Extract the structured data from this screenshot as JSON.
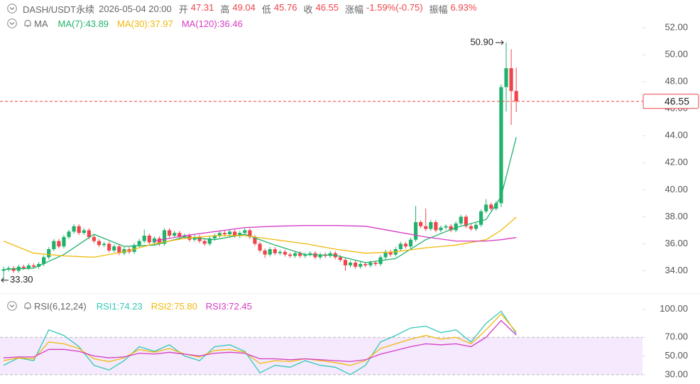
{
  "header": {
    "symbol": "DASH/USDT永续",
    "datetime": "2026-05-04 20:00",
    "stats": [
      {
        "label": "开",
        "value": "47.31"
      },
      {
        "label": "高",
        "value": "49.04"
      },
      {
        "label": "低",
        "value": "45.76"
      },
      {
        "label": "收",
        "value": "46.55"
      },
      {
        "label": "涨幅",
        "value": "-1.59%(-0.75)"
      },
      {
        "label": "振幅",
        "value": "6.93%"
      }
    ]
  },
  "chart_data": [
    {
      "type": "candlestick",
      "indicator": "MA",
      "up_color": "#20b26c",
      "down_color": "#ef454a",
      "ylim": [
        32.5,
        53
      ],
      "yticks": [
        {
          "value": 34,
          "label": "34.00"
        },
        {
          "value": 36,
          "label": "36.00"
        },
        {
          "value": 38,
          "label": "38.00"
        },
        {
          "value": 40,
          "label": "40.00"
        },
        {
          "value": 42,
          "label": "42.00"
        },
        {
          "value": 44,
          "label": "44.00"
        },
        {
          "value": 46,
          "label": "46.00"
        },
        {
          "value": 48,
          "label": "48.00"
        },
        {
          "value": 50,
          "label": "50.00"
        },
        {
          "value": 52,
          "label": "52.00"
        }
      ],
      "high_marker": {
        "value": 50.9,
        "label": "50.90"
      },
      "low_marker": {
        "value": 33.3,
        "label": "33.30"
      },
      "last_price": {
        "value": 46.55,
        "label": "46.55"
      },
      "ohlc": [
        [
          34.0,
          34.3,
          33.3,
          34.1
        ],
        [
          34.1,
          34.35,
          33.95,
          34.2
        ],
        [
          34.2,
          34.35,
          33.85,
          34.0
        ],
        [
          34.0,
          34.45,
          33.85,
          34.3
        ],
        [
          34.3,
          34.45,
          34.05,
          34.2
        ],
        [
          34.2,
          34.55,
          34.05,
          34.4
        ],
        [
          34.4,
          34.55,
          34.15,
          34.3
        ],
        [
          34.3,
          34.65,
          34.15,
          34.5
        ],
        [
          34.5,
          35.15,
          34.35,
          35.0
        ],
        [
          35.0,
          35.75,
          34.85,
          35.6
        ],
        [
          35.6,
          36.35,
          35.45,
          36.2
        ],
        [
          36.2,
          36.35,
          35.65,
          35.8
        ],
        [
          35.8,
          36.65,
          35.65,
          36.5
        ],
        [
          36.5,
          37.05,
          36.35,
          36.9
        ],
        [
          36.9,
          37.45,
          36.75,
          37.3
        ],
        [
          37.3,
          37.45,
          36.65,
          36.8
        ],
        [
          36.8,
          37.15,
          36.65,
          37.0
        ],
        [
          37.0,
          37.15,
          36.35,
          36.5
        ],
        [
          36.5,
          36.65,
          36.05,
          36.2
        ],
        [
          36.2,
          36.35,
          35.75,
          35.9
        ],
        [
          35.9,
          36.15,
          35.75,
          36.0
        ],
        [
          36.0,
          36.15,
          35.35,
          35.5
        ],
        [
          35.5,
          35.95,
          35.35,
          35.8
        ],
        [
          35.8,
          35.95,
          35.15,
          35.3
        ],
        [
          35.3,
          35.75,
          35.15,
          35.6
        ],
        [
          35.6,
          35.75,
          35.25,
          35.4
        ],
        [
          35.4,
          36.05,
          35.25,
          35.9
        ],
        [
          35.9,
          36.35,
          35.75,
          36.2
        ],
        [
          36.2,
          37.05,
          36.05,
          36.6
        ],
        [
          36.6,
          36.75,
          35.95,
          36.1
        ],
        [
          36.1,
          36.55,
          35.95,
          36.4
        ],
        [
          36.4,
          36.55,
          35.85,
          36.0
        ],
        [
          36.0,
          37.15,
          35.85,
          37.0
        ],
        [
          37.0,
          37.15,
          36.45,
          36.6
        ],
        [
          36.6,
          36.95,
          36.45,
          36.8
        ],
        [
          36.8,
          36.95,
          36.35,
          36.5
        ],
        [
          36.5,
          36.75,
          36.35,
          36.6
        ],
        [
          36.6,
          36.75,
          36.15,
          36.3
        ],
        [
          36.3,
          36.65,
          36.15,
          36.5
        ],
        [
          36.5,
          36.65,
          36.05,
          36.2
        ],
        [
          36.2,
          36.35,
          35.85,
          36.0
        ],
        [
          36.0,
          36.55,
          35.85,
          36.4
        ],
        [
          36.4,
          36.75,
          36.25,
          36.6
        ],
        [
          36.6,
          36.95,
          36.45,
          36.8
        ],
        [
          36.8,
          36.95,
          36.55,
          36.7
        ],
        [
          36.7,
          37.05,
          36.55,
          36.9
        ],
        [
          36.9,
          37.05,
          36.45,
          36.6
        ],
        [
          36.6,
          36.95,
          36.45,
          36.8
        ],
        [
          36.8,
          37.15,
          36.65,
          37.0
        ],
        [
          37.0,
          37.15,
          36.35,
          36.5
        ],
        [
          36.5,
          36.65,
          35.85,
          36.0
        ],
        [
          36.0,
          36.15,
          35.35,
          35.5
        ],
        [
          35.5,
          35.65,
          34.95,
          35.2
        ],
        [
          35.2,
          35.75,
          35.05,
          35.6
        ],
        [
          35.6,
          35.75,
          35.15,
          35.3
        ],
        [
          35.3,
          35.55,
          35.15,
          35.4
        ],
        [
          35.4,
          35.55,
          35.05,
          35.2
        ],
        [
          35.2,
          35.35,
          34.95,
          35.1
        ],
        [
          35.1,
          35.45,
          34.95,
          35.3
        ],
        [
          35.3,
          35.45,
          34.95,
          35.1
        ],
        [
          35.1,
          35.35,
          34.95,
          35.2
        ],
        [
          35.2,
          35.45,
          35.05,
          35.3
        ],
        [
          35.3,
          35.45,
          34.85,
          35.0
        ],
        [
          35.0,
          35.35,
          34.85,
          35.2
        ],
        [
          35.2,
          35.35,
          34.95,
          35.1
        ],
        [
          35.1,
          35.45,
          34.95,
          35.3
        ],
        [
          35.3,
          35.45,
          34.85,
          35.0
        ],
        [
          35.0,
          35.15,
          34.65,
          34.8
        ],
        [
          34.8,
          34.95,
          34.0,
          34.4
        ],
        [
          34.4,
          34.75,
          34.25,
          34.6
        ],
        [
          34.6,
          34.75,
          34.15,
          34.3
        ],
        [
          34.3,
          34.65,
          34.15,
          34.5
        ],
        [
          34.5,
          34.65,
          34.25,
          34.4
        ],
        [
          34.4,
          34.75,
          34.25,
          34.6
        ],
        [
          34.6,
          34.75,
          34.35,
          34.5
        ],
        [
          34.5,
          35.15,
          34.35,
          35.0
        ],
        [
          35.0,
          35.55,
          34.85,
          35.4
        ],
        [
          35.4,
          35.55,
          35.05,
          35.2
        ],
        [
          35.2,
          35.75,
          35.05,
          35.6
        ],
        [
          35.6,
          36.15,
          35.45,
          36.0
        ],
        [
          36.0,
          36.15,
          35.65,
          35.8
        ],
        [
          35.8,
          36.45,
          35.65,
          36.3
        ],
        [
          36.3,
          38.8,
          36.15,
          37.6
        ],
        [
          37.6,
          37.75,
          37.15,
          37.3
        ],
        [
          37.3,
          38.6,
          36.95,
          37.1
        ],
        [
          37.1,
          37.75,
          36.95,
          37.6
        ],
        [
          37.6,
          37.75,
          36.85,
          37.0
        ],
        [
          37.0,
          37.35,
          36.85,
          37.2
        ],
        [
          37.2,
          37.45,
          37.05,
          37.3
        ],
        [
          37.3,
          37.45,
          36.85,
          37.0
        ],
        [
          37.0,
          37.65,
          36.85,
          37.5
        ],
        [
          37.5,
          38.15,
          37.35,
          38.0
        ],
        [
          38.0,
          38.15,
          37.15,
          37.3
        ],
        [
          37.3,
          37.45,
          36.95,
          37.1
        ],
        [
          37.1,
          37.55,
          36.95,
          37.4
        ],
        [
          37.4,
          38.55,
          37.25,
          38.4
        ],
        [
          38.4,
          39.3,
          38.25,
          38.9
        ],
        [
          38.9,
          39.05,
          38.45,
          38.6
        ],
        [
          38.6,
          39.15,
          38.45,
          39.0
        ],
        [
          39.0,
          47.8,
          38.7,
          47.6
        ],
        [
          47.6,
          50.9,
          45.8,
          49.0
        ],
        [
          49.0,
          50.4,
          44.8,
          47.31
        ],
        [
          47.31,
          49.04,
          45.76,
          46.55
        ]
      ],
      "series": [
        {
          "name": "MA(7):43.89",
          "color": "#20b26c",
          "x": [
            0,
            6,
            12,
            18,
            24,
            30,
            36,
            42,
            48,
            54,
            60,
            66,
            72,
            78,
            84,
            90,
            96,
            99,
            102
          ],
          "values": [
            34.1,
            34.2,
            35.2,
            36.7,
            35.8,
            35.9,
            36.5,
            36.3,
            36.7,
            35.9,
            35.2,
            35.15,
            34.6,
            34.9,
            36.3,
            37.2,
            37.8,
            39.5,
            43.89
          ]
        },
        {
          "name": "MA(30):37.97",
          "color": "#f0b90b",
          "x": [
            0,
            6,
            12,
            18,
            24,
            30,
            36,
            42,
            48,
            54,
            60,
            66,
            72,
            78,
            84,
            90,
            96,
            99,
            102
          ],
          "values": [
            36.2,
            35.3,
            35.1,
            35.0,
            35.4,
            36.0,
            36.4,
            36.6,
            36.6,
            36.3,
            36.0,
            35.6,
            35.3,
            35.4,
            35.7,
            35.9,
            36.3,
            37.0,
            37.97
          ]
        },
        {
          "name": "MA(120):36.46",
          "color": "#d63cc4",
          "x": [
            0,
            6,
            12,
            18,
            24,
            30,
            36,
            42,
            48,
            54,
            60,
            66,
            72,
            78,
            84,
            90,
            96,
            99,
            102
          ],
          "values": [
            null,
            null,
            null,
            null,
            null,
            36.2,
            36.6,
            36.9,
            37.2,
            37.3,
            37.35,
            37.35,
            37.3,
            36.9,
            36.5,
            36.2,
            36.2,
            36.3,
            36.46
          ]
        }
      ]
    },
    {
      "type": "line",
      "indicator": "RSI(6,12,24)",
      "ylim": [
        20,
        112
      ],
      "yticks": [
        {
          "value": 30,
          "label": "30.00"
        },
        {
          "value": 50,
          "label": "50.00"
        },
        {
          "value": 70,
          "label": "70.00"
        },
        {
          "value": 100,
          "label": "100.00"
        }
      ],
      "band": [
        30,
        70
      ],
      "band_color": "#f4e9fd",
      "series": [
        {
          "name": "RSI1:74.23",
          "color": "#33c9b5",
          "x": [
            0,
            3,
            6,
            9,
            12,
            15,
            18,
            21,
            24,
            27,
            30,
            33,
            36,
            39,
            42,
            45,
            48,
            51,
            54,
            57,
            60,
            63,
            66,
            69,
            72,
            75,
            78,
            81,
            84,
            87,
            90,
            93,
            96,
            99,
            102
          ],
          "values": [
            40,
            48,
            45,
            78,
            72,
            60,
            40,
            35,
            45,
            60,
            55,
            62,
            50,
            45,
            60,
            62,
            55,
            32,
            40,
            38,
            45,
            40,
            38,
            30,
            40,
            65,
            72,
            80,
            82,
            75,
            78,
            65,
            85,
            98,
            74.23
          ]
        },
        {
          "name": "RSI2:75.80",
          "color": "#f0b90b",
          "x": [
            0,
            3,
            6,
            9,
            12,
            15,
            18,
            21,
            24,
            27,
            30,
            33,
            36,
            39,
            42,
            45,
            48,
            51,
            54,
            57,
            60,
            63,
            66,
            69,
            72,
            75,
            78,
            81,
            84,
            87,
            90,
            93,
            96,
            99,
            102
          ],
          "values": [
            45,
            48,
            47,
            65,
            63,
            58,
            47,
            44,
            48,
            57,
            54,
            58,
            52,
            49,
            56,
            57,
            54,
            42,
            45,
            44,
            47,
            45,
            43,
            40,
            45,
            58,
            63,
            68,
            72,
            68,
            70,
            63,
            78,
            95,
            75.8
          ]
        },
        {
          "name": "RSI3:72.45",
          "color": "#d63cc4",
          "x": [
            0,
            3,
            6,
            9,
            12,
            15,
            18,
            21,
            24,
            27,
            30,
            33,
            36,
            39,
            42,
            45,
            48,
            51,
            54,
            57,
            60,
            63,
            66,
            69,
            72,
            75,
            78,
            81,
            84,
            87,
            90,
            93,
            96,
            99,
            102
          ],
          "values": [
            48,
            49,
            49,
            57,
            57,
            55,
            50,
            48,
            49,
            53,
            52,
            54,
            52,
            50,
            53,
            54,
            53,
            47,
            47,
            46,
            47,
            46,
            45,
            44,
            46,
            52,
            56,
            60,
            63,
            62,
            63,
            60,
            70,
            88,
            72.45
          ]
        }
      ]
    }
  ]
}
